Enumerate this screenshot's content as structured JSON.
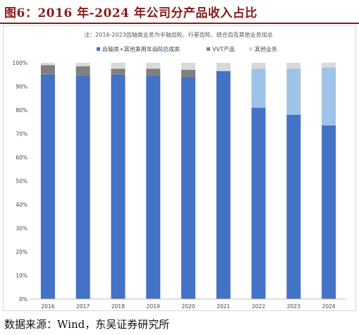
{
  "figure_title": "图6：2016 年-2024 年公司分产品收入占比",
  "source": "数据来源：Wind，东吴证券研究所",
  "chart_data": {
    "type": "bar",
    "stacked": true,
    "note": "注：2016-2023齿轴类业务为半轴齿轮、行星齿轮、结合齿及其他业务加总",
    "categories": [
      "2016",
      "2017",
      "2018",
      "2019",
      "2020",
      "2021",
      "2022",
      "2023",
      "2024"
    ],
    "series": [
      {
        "name": "齿轴类+其他乘用车齿轮",
        "color": "#4472c4",
        "values": [
          95,
          94.5,
          95,
          94.5,
          94,
          96.5,
          81,
          78,
          73.5
        ]
      },
      {
        "name": "总成类",
        "color": "#9dc3e6",
        "values": [
          0,
          0,
          0,
          0,
          0,
          0,
          16.5,
          19.5,
          24.5
        ]
      },
      {
        "name": "VVT产品",
        "color": "#808080",
        "values": [
          4,
          4,
          2.5,
          3,
          3,
          0,
          0,
          0,
          0
        ]
      },
      {
        "name": "其他业务",
        "color": "#d9d9d9",
        "values": [
          1,
          1.5,
          2.5,
          2.5,
          3,
          3.5,
          2.5,
          2.5,
          2
        ]
      }
    ],
    "ylim": [
      0,
      100
    ],
    "yticks": [
      "0%",
      "10%",
      "20%",
      "30%",
      "40%",
      "50%",
      "60%",
      "70%",
      "80%",
      "90%",
      "100%"
    ],
    "legend_position": "top",
    "grid": false
  }
}
